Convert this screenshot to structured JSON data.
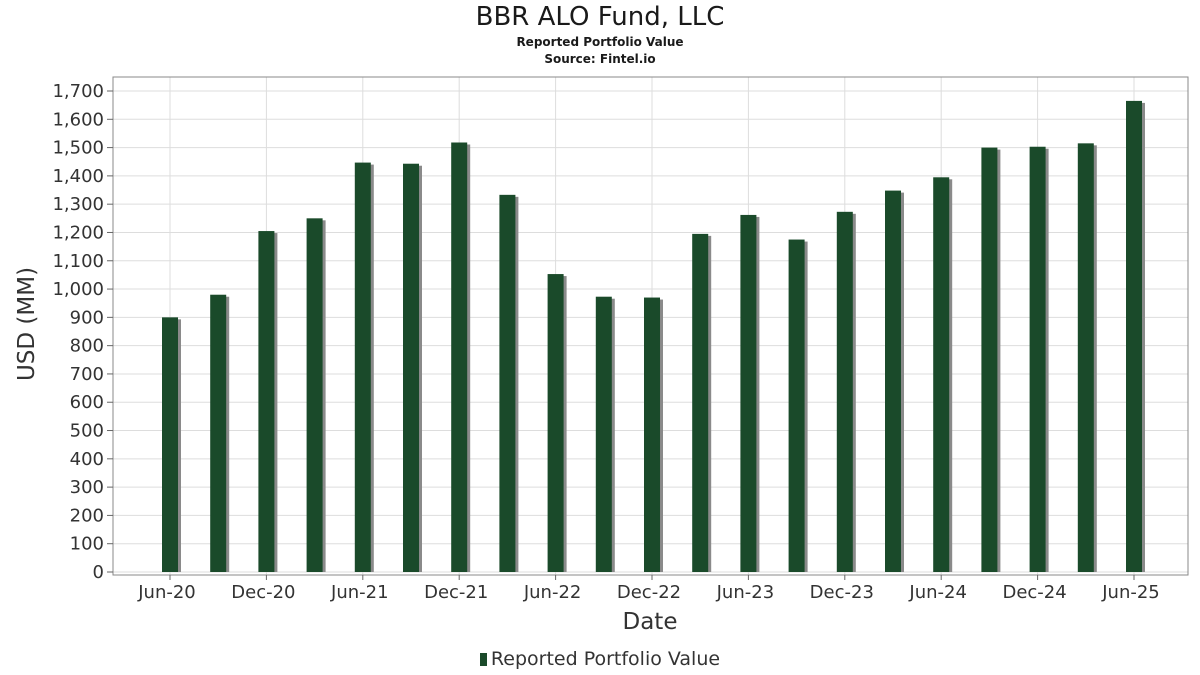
{
  "header": {
    "title": "BBR ALO Fund, LLC",
    "subtitle": "Reported Portfolio Value",
    "source": "Source: Fintel.io"
  },
  "legend": {
    "label": "Reported Portfolio Value",
    "color": "#1a4a2a"
  },
  "colors": {
    "bar": "#1a4a2a",
    "bar_shadow": "#8a8a8a",
    "grid": "#dddddd",
    "plot_border": "#888888"
  },
  "chart_data": {
    "type": "bar",
    "title": "BBR ALO Fund, LLC",
    "subtitle": "Reported Portfolio Value",
    "xlabel": "Date",
    "ylabel": "USD (MM)",
    "ylim": [
      0,
      1750
    ],
    "yticks": [
      0,
      100,
      200,
      300,
      400,
      500,
      600,
      700,
      800,
      900,
      1000,
      1100,
      1200,
      1300,
      1400,
      1500,
      1600,
      1700
    ],
    "ytick_labels": [
      "0",
      "100",
      "200",
      "300",
      "400",
      "500",
      "600",
      "700",
      "800",
      "900",
      "1,000",
      "1,100",
      "1,200",
      "1,300",
      "1,400",
      "1,500",
      "1,600",
      "1,700"
    ],
    "x_tick_labels": [
      "Jun-20",
      "Dec-20",
      "Jun-21",
      "Dec-21",
      "Jun-22",
      "Dec-22",
      "Jun-23",
      "Dec-23",
      "Jun-24",
      "Dec-24",
      "Jun-25"
    ],
    "categories": [
      "2020-06-30",
      "2020-09-30",
      "2020-12-31",
      "2021-03-31",
      "2021-06-30",
      "2021-09-30",
      "2021-12-31",
      "2022-03-31",
      "2022-06-30",
      "2022-09-30",
      "2022-12-31",
      "2023-03-31",
      "2023-06-30",
      "2023-09-30",
      "2023-12-31",
      "2024-03-31",
      "2024-06-30",
      "2024-09-30",
      "2024-12-31",
      "2025-03-31",
      "2025-06-30"
    ],
    "values": [
      900,
      980,
      1205,
      1250,
      1447,
      1443,
      1518,
      1333,
      1053,
      973,
      970,
      1195,
      1262,
      1175,
      1273,
      1348,
      1395,
      1500,
      1503,
      1515,
      1665
    ],
    "grid": true,
    "legend_position": "bottom"
  }
}
